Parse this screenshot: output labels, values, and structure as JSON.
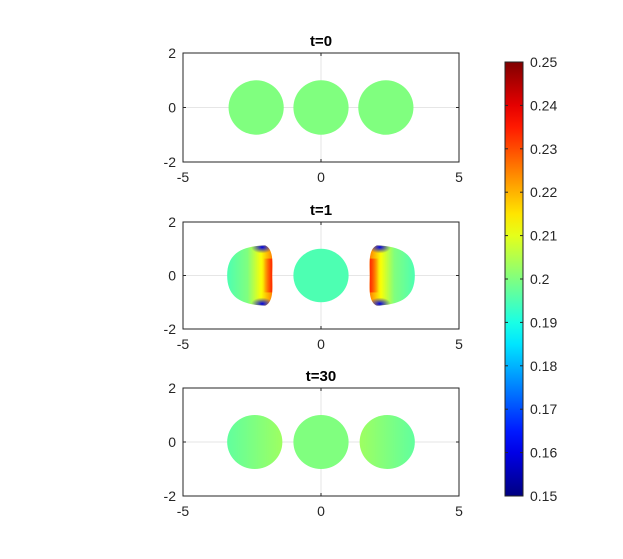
{
  "chart_data": [
    {
      "type": "heatmap",
      "title": "t=0",
      "xlim": [
        -5,
        5
      ],
      "ylim": [
        -2,
        2
      ],
      "xticks": [
        -5,
        0,
        5
      ],
      "yticks": [
        -2,
        0,
        2
      ],
      "grid": true,
      "bodies": [
        {
          "x": -2.35,
          "y": 0,
          "rx": 1.0,
          "ry": 1.0,
          "shape": "circle",
          "value_left": 0.2,
          "value_right": 0.2
        },
        {
          "x": 0,
          "y": 0,
          "rx": 1.0,
          "ry": 1.0,
          "shape": "circle",
          "value_left": 0.2,
          "value_right": 0.2
        },
        {
          "x": 2.35,
          "y": 0,
          "rx": 1.0,
          "ry": 1.0,
          "shape": "circle",
          "value_left": 0.2,
          "value_right": 0.2
        }
      ]
    },
    {
      "type": "heatmap",
      "title": "t=1",
      "xlim": [
        -5,
        5
      ],
      "ylim": [
        -2,
        2
      ],
      "xticks": [
        -5,
        0,
        5
      ],
      "yticks": [
        -2,
        0,
        2
      ],
      "grid": true,
      "bodies": [
        {
          "x": -2.45,
          "y": 0,
          "rx": 0.95,
          "ry": 1.15,
          "shape": "deformed-left",
          "value_outer": 0.195,
          "value_inner": 0.225,
          "value_tips": 0.16
        },
        {
          "x": 0,
          "y": 0,
          "rx": 1.0,
          "ry": 1.0,
          "shape": "circle",
          "value_left": 0.195,
          "value_right": 0.195
        },
        {
          "x": 2.45,
          "y": 0,
          "rx": 0.95,
          "ry": 1.15,
          "shape": "deformed-right",
          "value_outer": 0.195,
          "value_inner": 0.225,
          "value_tips": 0.16
        }
      ]
    },
    {
      "type": "heatmap",
      "title": "t=30",
      "xlim": [
        -5,
        5
      ],
      "ylim": [
        -2,
        2
      ],
      "xticks": [
        -5,
        0,
        5
      ],
      "yticks": [
        -2,
        0,
        2
      ],
      "grid": true,
      "bodies": [
        {
          "x": -2.4,
          "y": 0,
          "rx": 1.0,
          "ry": 1.0,
          "shape": "circle",
          "value_left": 0.197,
          "value_right": 0.203
        },
        {
          "x": 0,
          "y": 0,
          "rx": 1.0,
          "ry": 1.0,
          "shape": "circle",
          "value_left": 0.2,
          "value_right": 0.2
        },
        {
          "x": 2.4,
          "y": 0,
          "rx": 1.0,
          "ry": 1.0,
          "shape": "circle",
          "value_left": 0.203,
          "value_right": 0.197
        }
      ]
    }
  ],
  "colorbar": {
    "colormap": "jet",
    "min": 0.15,
    "max": 0.25,
    "ticks": [
      "0.25",
      "0.24",
      "0.23",
      "0.22",
      "0.21",
      "0.2",
      "0.19",
      "0.18",
      "0.17",
      "0.16",
      "0.15"
    ]
  },
  "colors": {
    "axis": "#262626",
    "grid": "#e6e6e6"
  }
}
